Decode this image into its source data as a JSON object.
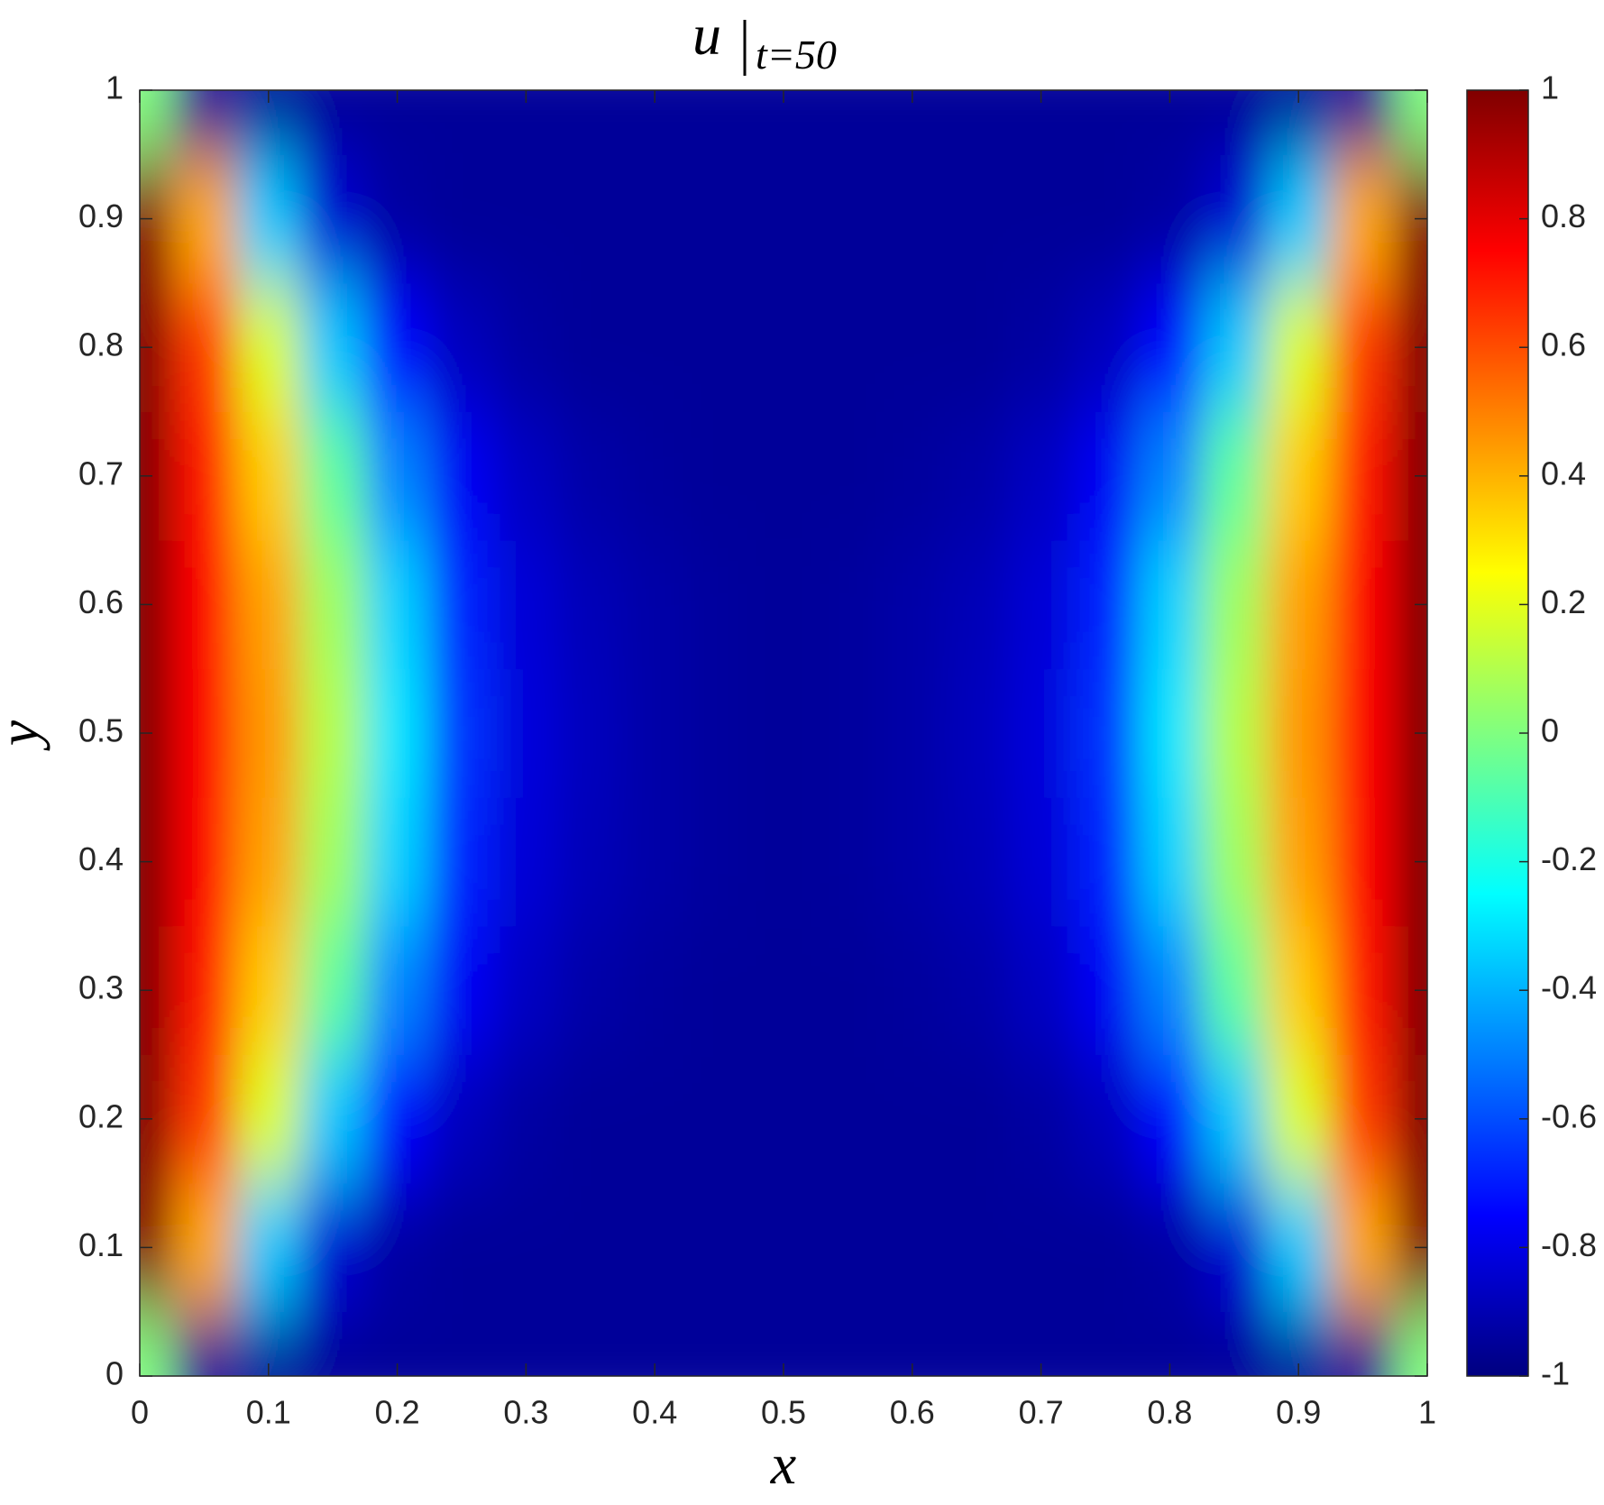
{
  "chart_data": {
    "type": "heatmap",
    "title": {
      "symbol": "u",
      "subscript": "t=50"
    },
    "x_label": "x",
    "y_label": "y",
    "x": [
      0,
      0.05,
      0.1,
      0.15,
      0.2,
      0.25,
      0.3,
      0.35,
      0.4,
      0.45,
      0.5,
      0.55,
      0.6,
      0.65,
      0.7,
      0.75,
      0.8,
      0.85,
      0.9,
      0.95,
      1
    ],
    "y": [
      0,
      0.1,
      0.2,
      0.3,
      0.4,
      0.5,
      0.6,
      0.7,
      0.8,
      0.9,
      1
    ],
    "z": [
      [
        0,
        -0.95,
        -0.95,
        -0.95,
        -0.95,
        -0.95,
        -0.95,
        -0.95,
        -0.95,
        -0.95,
        -0.95,
        -0.95,
        -0.95,
        -0.95,
        -0.95,
        -0.95,
        -0.95,
        -0.95,
        -0.95,
        -0.95,
        0
      ],
      [
        1,
        0.42,
        -0.36,
        -0.84,
        -0.93,
        -0.95,
        -0.95,
        -0.95,
        -0.95,
        -0.95,
        -0.95,
        -0.95,
        -0.95,
        -0.95,
        -0.95,
        -0.95,
        -0.93,
        -0.84,
        -0.36,
        0.42,
        1
      ],
      [
        1,
        0.64,
        0.18,
        -0.36,
        -0.75,
        -0.88,
        -0.93,
        -0.95,
        -0.95,
        -0.95,
        -0.95,
        -0.95,
        -0.95,
        -0.95,
        -0.93,
        -0.88,
        -0.75,
        -0.36,
        0.18,
        0.64,
        1
      ],
      [
        1,
        0.71,
        0.35,
        -0.06,
        -0.49,
        -0.77,
        -0.87,
        -0.92,
        -0.94,
        -0.95,
        -0.95,
        -0.95,
        -0.94,
        -0.92,
        -0.87,
        -0.77,
        -0.49,
        -0.06,
        0.35,
        0.71,
        1
      ],
      [
        1,
        0.74,
        0.43,
        0.06,
        -0.34,
        -0.68,
        -0.83,
        -0.89,
        -0.92,
        -0.94,
        -0.95,
        -0.94,
        -0.92,
        -0.89,
        -0.83,
        -0.68,
        -0.34,
        0.06,
        0.43,
        0.74,
        1
      ],
      [
        1,
        0.75,
        0.45,
        0.1,
        -0.3,
        -0.65,
        -0.82,
        -0.88,
        -0.92,
        -0.94,
        -0.95,
        -0.94,
        -0.92,
        -0.88,
        -0.82,
        -0.65,
        -0.3,
        0.1,
        0.45,
        0.75,
        1
      ],
      [
        1,
        0.74,
        0.43,
        0.06,
        -0.34,
        -0.68,
        -0.83,
        -0.89,
        -0.92,
        -0.94,
        -0.95,
        -0.94,
        -0.92,
        -0.89,
        -0.83,
        -0.68,
        -0.34,
        0.06,
        0.43,
        0.74,
        1
      ],
      [
        1,
        0.71,
        0.35,
        -0.06,
        -0.49,
        -0.77,
        -0.87,
        -0.92,
        -0.94,
        -0.95,
        -0.95,
        -0.95,
        -0.94,
        -0.92,
        -0.87,
        -0.77,
        -0.49,
        -0.06,
        0.35,
        0.71,
        1
      ],
      [
        1,
        0.64,
        0.18,
        -0.36,
        -0.75,
        -0.88,
        -0.93,
        -0.95,
        -0.95,
        -0.95,
        -0.95,
        -0.95,
        -0.95,
        -0.95,
        -0.93,
        -0.88,
        -0.75,
        -0.36,
        0.18,
        0.64,
        1
      ],
      [
        1,
        0.42,
        -0.36,
        -0.84,
        -0.93,
        -0.95,
        -0.95,
        -0.95,
        -0.95,
        -0.95,
        -0.95,
        -0.95,
        -0.95,
        -0.95,
        -0.95,
        -0.95,
        -0.93,
        -0.84,
        -0.36,
        0.42,
        1
      ],
      [
        0,
        -0.95,
        -0.95,
        -0.95,
        -0.95,
        -0.95,
        -0.95,
        -0.95,
        -0.95,
        -0.95,
        -0.95,
        -0.95,
        -0.95,
        -0.95,
        -0.95,
        -0.95,
        -0.95,
        -0.95,
        -0.95,
        -0.95,
        0
      ]
    ],
    "colormap": "jet",
    "xlim": [
      0,
      1
    ],
    "ylim": [
      0,
      1
    ],
    "xticks": [
      0,
      0.1,
      0.2,
      0.3,
      0.4,
      0.5,
      0.6,
      0.7,
      0.8,
      0.9,
      1
    ],
    "yticks": [
      0,
      0.1,
      0.2,
      0.3,
      0.4,
      0.5,
      0.6,
      0.7,
      0.8,
      0.9,
      1
    ],
    "clim": [
      -1,
      1
    ],
    "cticks": [
      -1,
      -0.8,
      -0.6,
      -0.4,
      -0.2,
      0,
      0.2,
      0.4,
      0.6,
      0.8,
      1
    ]
  }
}
